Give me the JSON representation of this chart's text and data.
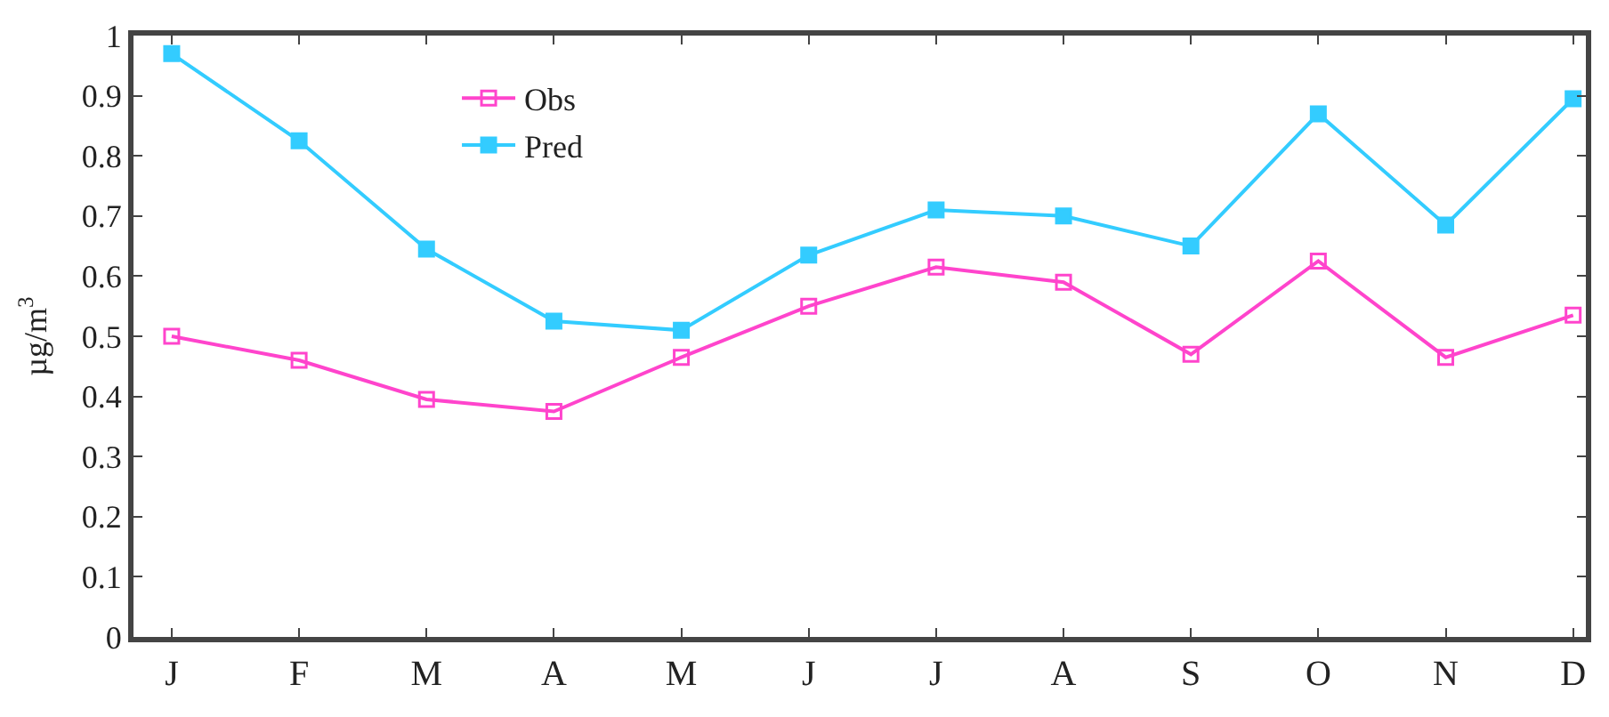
{
  "chart_data": {
    "type": "line",
    "ylabel": "µg/m$^{3}$",
    "categories": [
      "J",
      "F",
      "M",
      "A",
      "M",
      "J",
      "J",
      "A",
      "S",
      "O",
      "N",
      "D"
    ],
    "series": [
      {
        "name": "Obs",
        "color": "#ff44cc",
        "marker": "square-open",
        "values": [
          0.5,
          0.46,
          0.395,
          0.375,
          0.465,
          0.55,
          0.615,
          0.59,
          0.47,
          0.625,
          0.465,
          0.535
        ]
      },
      {
        "name": "Pred",
        "color": "#33ccff",
        "marker": "square",
        "values": [
          0.97,
          0.825,
          0.645,
          0.525,
          0.51,
          0.635,
          0.71,
          0.7,
          0.65,
          0.87,
          0.685,
          0.895
        ]
      }
    ],
    "ylim": [
      0,
      1
    ],
    "yticks": [
      0,
      0.1,
      0.2,
      0.3,
      0.4,
      0.5,
      0.6,
      0.7,
      0.8,
      0.9,
      1
    ],
    "legend": "top left",
    "line_style": "solid"
  }
}
